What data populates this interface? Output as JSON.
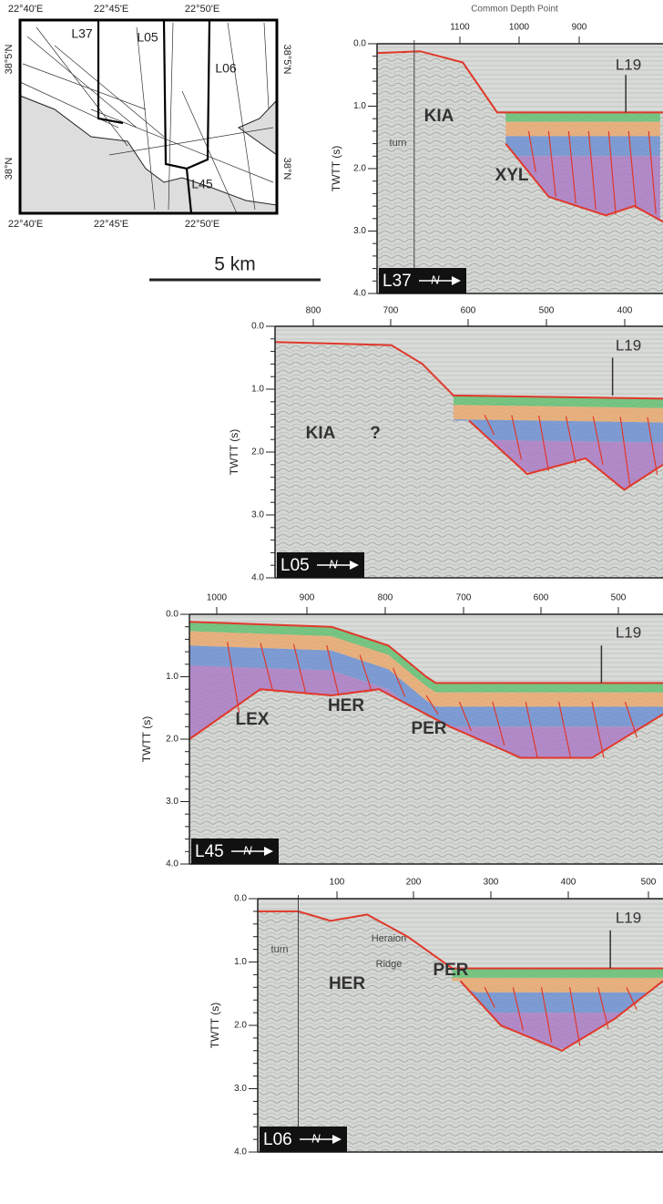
{
  "map": {
    "top_labels": [
      "22°40'E",
      "22°45'E",
      "22°50'E"
    ],
    "bottom_labels": [
      "22°40'E",
      "22°45'E",
      "22°50'E"
    ],
    "left_labels": [
      "38°5'N",
      "38°N"
    ],
    "right_labels": [
      "38°5'N",
      "38°N"
    ],
    "line_labels": [
      "L37",
      "L05",
      "L06",
      "L45"
    ]
  },
  "scale_bar": {
    "label": "5 km"
  },
  "x_axis_title": "Common Depth Point",
  "y_axis_title": "TWTT (s)",
  "panels": [
    {
      "line": "L37",
      "arrow_label": "N",
      "y_ticks": [
        "0.0",
        "1.0",
        "2.0",
        "3.0",
        "4.0"
      ],
      "x_ticks": [
        "1100",
        "1000",
        "900"
      ],
      "annotations": [
        "KIA",
        "XYL",
        "L19",
        "turn"
      ]
    },
    {
      "line": "L05",
      "arrow_label": "N",
      "y_ticks": [
        "0.0",
        "1.0",
        "2.0",
        "3.0",
        "4.0"
      ],
      "x_ticks": [
        "800",
        "700",
        "600",
        "500",
        "400"
      ],
      "annotations": [
        "KIA",
        "?",
        "L19"
      ]
    },
    {
      "line": "L45",
      "arrow_label": "N",
      "y_ticks": [
        "0.0",
        "1.0",
        "2.0",
        "3.0",
        "4.0"
      ],
      "x_ticks": [
        "1000",
        "900",
        "800",
        "700",
        "600",
        "500"
      ],
      "annotations": [
        "LEX",
        "HER",
        "PER",
        "L19"
      ]
    },
    {
      "line": "L06",
      "arrow_label": "N",
      "y_ticks": [
        "0.0",
        "1.0",
        "2.0",
        "3.0",
        "4.0"
      ],
      "x_ticks": [
        "100",
        "200",
        "300",
        "400",
        "500"
      ],
      "annotations": [
        "HER",
        "Heraion",
        "Ridge",
        "PER",
        "L19",
        "turn"
      ]
    }
  ]
}
